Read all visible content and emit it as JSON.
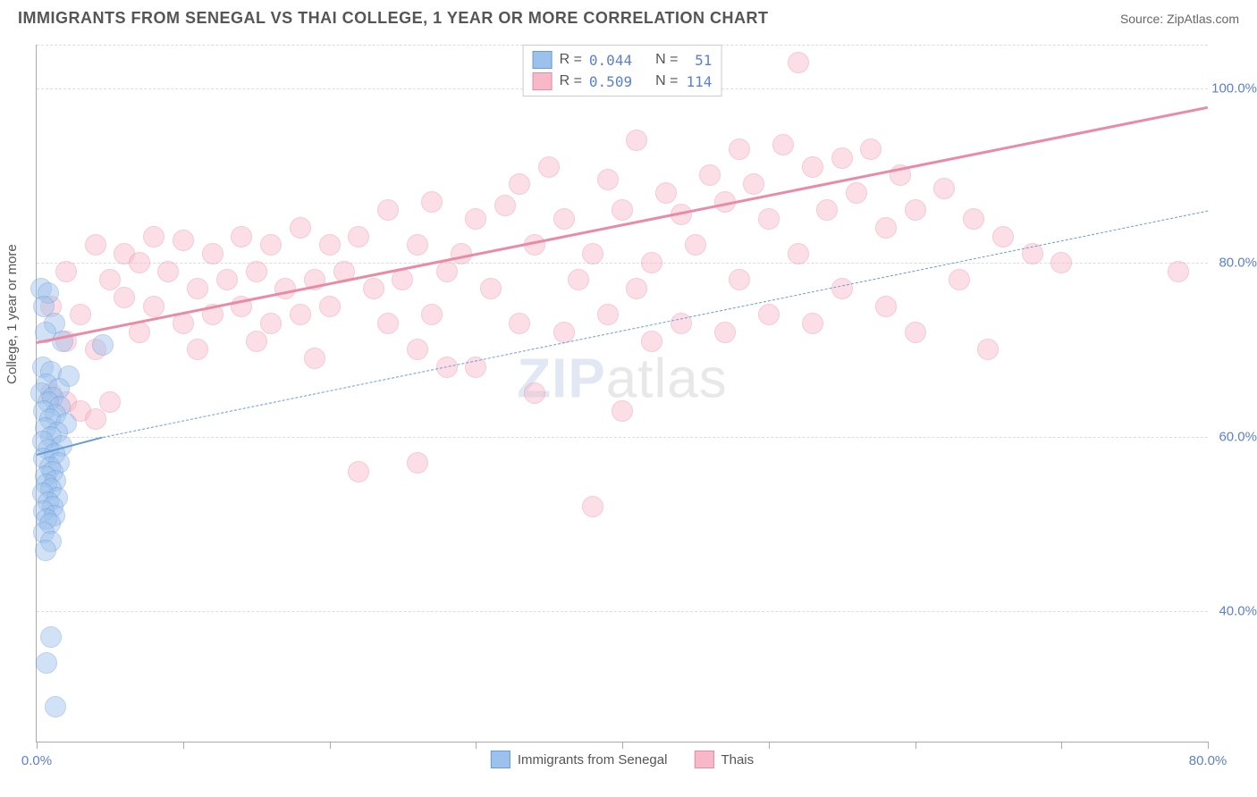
{
  "header": {
    "title": "IMMIGRANTS FROM SENEGAL VS THAI COLLEGE, 1 YEAR OR MORE CORRELATION CHART",
    "source": "Source: ZipAtlas.com"
  },
  "chart": {
    "type": "scatter",
    "ylabel": "College, 1 year or more",
    "watermark_bold": "ZIP",
    "watermark_thin": "atlas",
    "background_color": "#ffffff",
    "grid_color": "#dddddd",
    "axis_color": "#aaaaaa",
    "marker_radius": 11,
    "marker_opacity": 0.45,
    "xlim": [
      0,
      80
    ],
    "ylim": [
      25,
      105
    ],
    "x_ticks": [
      0,
      10,
      20,
      30,
      40,
      50,
      60,
      70,
      80
    ],
    "x_tick_labels": {
      "0": "0.0%",
      "80": "80.0%"
    },
    "y_ticks": [
      40,
      60,
      80,
      100
    ],
    "y_tick_labels": {
      "40": "40.0%",
      "60": "60.0%",
      "80": "80.0%",
      "100": "100.0%"
    },
    "label_color": "#5b7fd1",
    "label_fontsize": 15,
    "series": [
      {
        "name": "Immigrants from Senegal",
        "key": "senegal",
        "fill_color": "#9cc1ec",
        "stroke_color": "#6a9bd8",
        "trend": {
          "x1": 0,
          "y1": 58,
          "x2": 4.5,
          "y2": 60,
          "solid_width": 2
        },
        "extrapolation": {
          "x1": 4.5,
          "y1": 60,
          "x2": 80,
          "y2": 86,
          "dash": true
        },
        "R": "0.044",
        "N": "51",
        "points": [
          [
            0.3,
            77
          ],
          [
            0.8,
            76.5
          ],
          [
            0.5,
            75
          ],
          [
            1.2,
            73
          ],
          [
            0.6,
            72
          ],
          [
            1.8,
            71
          ],
          [
            4.5,
            70.5
          ],
          [
            0.4,
            68
          ],
          [
            1.0,
            67.5
          ],
          [
            2.2,
            67
          ],
          [
            0.7,
            66
          ],
          [
            1.5,
            65.5
          ],
          [
            0.3,
            65
          ],
          [
            1.1,
            64.5
          ],
          [
            0.8,
            64
          ],
          [
            1.6,
            63.5
          ],
          [
            0.5,
            63
          ],
          [
            1.3,
            62.5
          ],
          [
            0.9,
            62
          ],
          [
            2.0,
            61.5
          ],
          [
            0.6,
            61
          ],
          [
            1.4,
            60.5
          ],
          [
            1.0,
            60
          ],
          [
            0.4,
            59.5
          ],
          [
            1.7,
            59
          ],
          [
            0.8,
            58.5
          ],
          [
            1.2,
            58
          ],
          [
            0.5,
            57.5
          ],
          [
            1.5,
            57
          ],
          [
            0.9,
            56.5
          ],
          [
            1.1,
            56
          ],
          [
            0.6,
            55.5
          ],
          [
            1.3,
            55
          ],
          [
            0.7,
            54.5
          ],
          [
            1.0,
            54
          ],
          [
            0.4,
            53.5
          ],
          [
            1.4,
            53
          ],
          [
            0.8,
            52.5
          ],
          [
            1.1,
            52
          ],
          [
            0.5,
            51.5
          ],
          [
            1.2,
            51
          ],
          [
            0.7,
            50.5
          ],
          [
            0.9,
            50
          ],
          [
            0.5,
            49
          ],
          [
            1.0,
            48
          ],
          [
            0.6,
            47
          ],
          [
            1.0,
            37
          ],
          [
            0.7,
            34
          ],
          [
            1.3,
            29
          ]
        ]
      },
      {
        "name": "Thais",
        "key": "thais",
        "fill_color": "#f7b8c8",
        "stroke_color": "#e98ba6",
        "trend": {
          "x1": 0,
          "y1": 71,
          "x2": 80,
          "y2": 98,
          "solid_width": 3
        },
        "R": "0.509",
        "N": "114",
        "points": [
          [
            52,
            103
          ],
          [
            41,
            94
          ],
          [
            48,
            93
          ],
          [
            51,
            93.5
          ],
          [
            55,
            92
          ],
          [
            57,
            93
          ],
          [
            59,
            90
          ],
          [
            35,
            91
          ],
          [
            33,
            89
          ],
          [
            39,
            89.5
          ],
          [
            43,
            88
          ],
          [
            46,
            90
          ],
          [
            49,
            89
          ],
          [
            53,
            91
          ],
          [
            56,
            88
          ],
          [
            62,
            88.5
          ],
          [
            60,
            86
          ],
          [
            24,
            86
          ],
          [
            27,
            87
          ],
          [
            30,
            85
          ],
          [
            32,
            86.5
          ],
          [
            36,
            85
          ],
          [
            40,
            86
          ],
          [
            44,
            85.5
          ],
          [
            47,
            87
          ],
          [
            50,
            85
          ],
          [
            54,
            86
          ],
          [
            58,
            84
          ],
          [
            64,
            85
          ],
          [
            66,
            83
          ],
          [
            4,
            82
          ],
          [
            6,
            81
          ],
          [
            8,
            83
          ],
          [
            10,
            82.5
          ],
          [
            12,
            81
          ],
          [
            14,
            83
          ],
          [
            16,
            82
          ],
          [
            18,
            84
          ],
          [
            20,
            82
          ],
          [
            22,
            83
          ],
          [
            26,
            82
          ],
          [
            29,
            81
          ],
          [
            34,
            82
          ],
          [
            38,
            81
          ],
          [
            42,
            80
          ],
          [
            45,
            82
          ],
          [
            52,
            81
          ],
          [
            68,
            81
          ],
          [
            2,
            79
          ],
          [
            5,
            78
          ],
          [
            7,
            80
          ],
          [
            9,
            79
          ],
          [
            11,
            77
          ],
          [
            13,
            78
          ],
          [
            15,
            79
          ],
          [
            17,
            77
          ],
          [
            19,
            78
          ],
          [
            21,
            79
          ],
          [
            23,
            77
          ],
          [
            25,
            78
          ],
          [
            28,
            79
          ],
          [
            31,
            77
          ],
          [
            37,
            78
          ],
          [
            41,
            77
          ],
          [
            48,
            78
          ],
          [
            55,
            77
          ],
          [
            63,
            78
          ],
          [
            1,
            75
          ],
          [
            3,
            74
          ],
          [
            6,
            76
          ],
          [
            8,
            75
          ],
          [
            10,
            73
          ],
          [
            12,
            74
          ],
          [
            14,
            75
          ],
          [
            16,
            73
          ],
          [
            18,
            74
          ],
          [
            20,
            75
          ],
          [
            24,
            73
          ],
          [
            27,
            74
          ],
          [
            33,
            73
          ],
          [
            39,
            74
          ],
          [
            44,
            73
          ],
          [
            50,
            74
          ],
          [
            58,
            75
          ],
          [
            70,
            80
          ],
          [
            78,
            79
          ],
          [
            2,
            71
          ],
          [
            4,
            70
          ],
          [
            7,
            72
          ],
          [
            11,
            70
          ],
          [
            15,
            71
          ],
          [
            19,
            69
          ],
          [
            26,
            70
          ],
          [
            30,
            68
          ],
          [
            36,
            72
          ],
          [
            42,
            71
          ],
          [
            47,
            72
          ],
          [
            53,
            73
          ],
          [
            60,
            72
          ],
          [
            65,
            70
          ],
          [
            1,
            65
          ],
          [
            2,
            64
          ],
          [
            3,
            63
          ],
          [
            4,
            62
          ],
          [
            5,
            64
          ],
          [
            28,
            68
          ],
          [
            34,
            65
          ],
          [
            40,
            63
          ],
          [
            26,
            57
          ],
          [
            22,
            56
          ],
          [
            38,
            52
          ]
        ]
      }
    ],
    "legend_top": {
      "r_label": "R =",
      "n_label": "N ="
    },
    "legend_bottom_labels": [
      "Immigrants from Senegal",
      "Thais"
    ]
  }
}
